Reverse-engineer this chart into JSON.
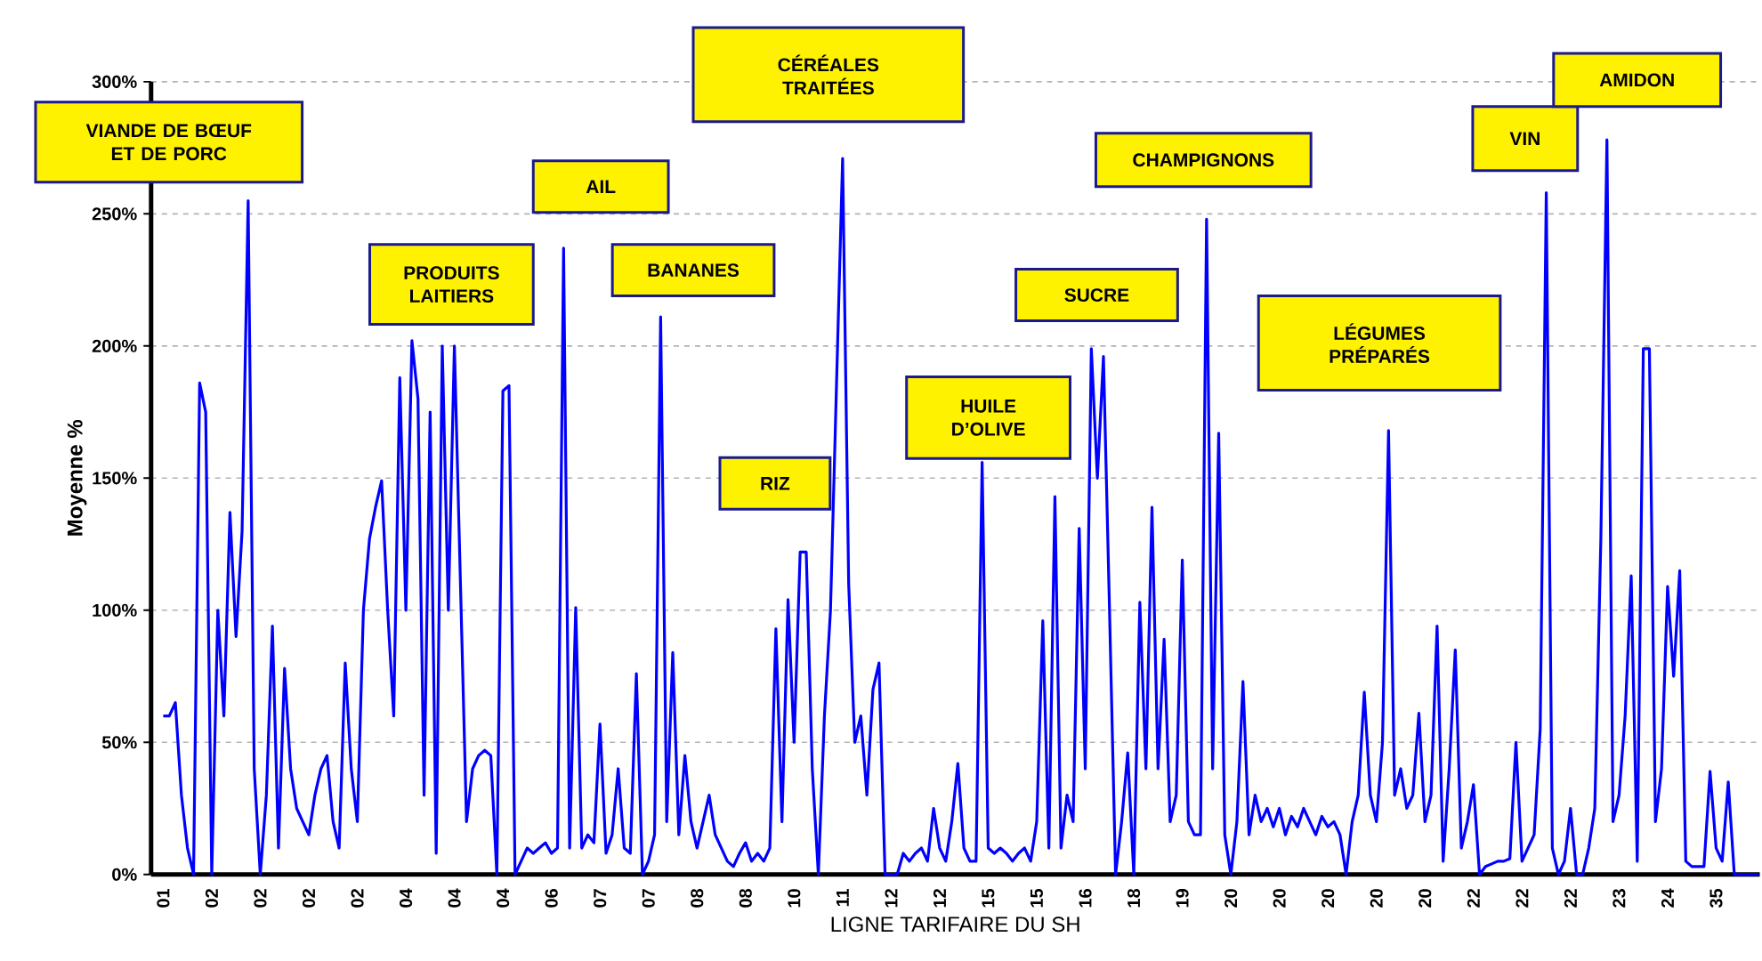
{
  "chart_data": {
    "type": "line",
    "xlabel": "LIGNE TARIFAIRE DU SH",
    "ylabel": "Moyenne %",
    "categories": [
      "01",
      null,
      null,
      null,
      null,
      null,
      null,
      null,
      "02",
      null,
      null,
      null,
      null,
      null,
      null,
      null,
      "02",
      null,
      null,
      null,
      null,
      null,
      null,
      null,
      "02",
      null,
      null,
      null,
      null,
      null,
      null,
      null,
      "02",
      null,
      null,
      null,
      null,
      null,
      null,
      null,
      "04",
      null,
      null,
      null,
      null,
      null,
      null,
      null,
      "04",
      null,
      null,
      null,
      null,
      null,
      null,
      null,
      "04",
      null,
      null,
      null,
      null,
      null,
      null,
      null,
      "06",
      null,
      null,
      null,
      null,
      null,
      null,
      null,
      "07",
      null,
      null,
      null,
      null,
      null,
      null,
      null,
      "07",
      null,
      null,
      null,
      null,
      null,
      null,
      null,
      "08",
      null,
      null,
      null,
      null,
      null,
      null,
      null,
      "08",
      null,
      null,
      null,
      null,
      null,
      null,
      null,
      "10",
      null,
      null,
      null,
      null,
      null,
      null,
      null,
      "11",
      null,
      null,
      null,
      null,
      null,
      null,
      null,
      "12",
      null,
      null,
      null,
      null,
      null,
      null,
      null,
      "12",
      null,
      null,
      null,
      null,
      null,
      null,
      null,
      "15",
      null,
      null,
      null,
      null,
      null,
      null,
      null,
      "15",
      null,
      null,
      null,
      null,
      null,
      null,
      null,
      "16",
      null,
      null,
      null,
      null,
      null,
      null,
      null,
      "18",
      null,
      null,
      null,
      null,
      null,
      null,
      null,
      "19",
      null,
      null,
      null,
      null,
      null,
      null,
      null,
      "20",
      null,
      null,
      null,
      null,
      null,
      null,
      null,
      "20",
      null,
      null,
      null,
      null,
      null,
      null,
      null,
      "20",
      null,
      null,
      null,
      null,
      null,
      null,
      null,
      "20",
      null,
      null,
      null,
      null,
      null,
      null,
      null,
      "20",
      null,
      null,
      null,
      null,
      null,
      null,
      null,
      "22",
      null,
      null,
      null,
      null,
      null,
      null,
      null,
      "22",
      null,
      null,
      null,
      null,
      null,
      null,
      null,
      "22",
      null,
      null,
      null,
      null,
      null,
      null,
      null,
      "23",
      null,
      null,
      null,
      null,
      null,
      null,
      null,
      "24",
      null,
      null,
      null,
      null,
      null,
      null,
      null,
      "35",
      null,
      null,
      null,
      null,
      null,
      null,
      null
    ],
    "ylim": [
      0,
      300
    ],
    "yticks": [
      {
        "value": 0,
        "label": "0%"
      },
      {
        "value": 50,
        "label": "50%"
      },
      {
        "value": 100,
        "label": "100%"
      },
      {
        "value": 150,
        "label": "150%"
      },
      {
        "value": 200,
        "label": "200%"
      },
      {
        "value": 250,
        "label": "250%"
      },
      {
        "value": 300,
        "label": "300%"
      }
    ],
    "grid": "y",
    "marker": "none",
    "line_style": "solid",
    "annotations": [
      "VIANDE DE BŒUF\nET DE PORC",
      "PRODUITS\nLAITIERS",
      "AIL",
      "BANANES",
      "CÉRÉALES\nTRAITÉES",
      "RIZ",
      "HUILE\nD’OLIVE",
      "SUCRE",
      "CHAMPIGNONS",
      "LÉGUMES\nPRÉPARÉS",
      "VIN",
      "AMIDON"
    ],
    "series": [
      {
        "color": "#0000ff",
        "values": [
          60,
          60,
          65,
          30,
          10,
          0,
          186,
          175,
          0,
          100,
          60,
          137,
          90,
          130,
          255,
          40,
          0,
          30,
          94,
          10,
          78,
          40,
          25,
          20,
          15,
          30,
          40,
          45,
          20,
          10,
          80,
          40,
          20,
          100,
          127,
          139,
          149,
          100,
          60,
          188,
          100,
          202,
          180,
          30,
          175,
          8,
          200,
          100,
          200,
          110,
          20,
          40,
          45,
          47,
          45,
          0,
          183,
          185,
          0,
          5,
          10,
          8,
          10,
          12,
          8,
          10,
          237,
          10,
          101,
          10,
          15,
          12,
          57,
          8,
          15,
          40,
          10,
          8,
          76,
          0,
          5,
          15,
          211,
          20,
          84,
          15,
          45,
          20,
          10,
          20,
          30,
          15,
          10,
          5,
          3,
          8,
          12,
          5,
          8,
          5,
          10,
          93,
          20,
          104,
          50,
          122,
          122,
          40,
          0,
          60,
          100,
          186,
          271,
          110,
          50,
          60,
          30,
          70,
          80,
          0,
          0,
          0,
          8,
          5,
          8,
          10,
          5,
          25,
          10,
          5,
          20,
          42,
          10,
          5,
          5,
          156,
          10,
          8,
          10,
          8,
          5,
          8,
          10,
          5,
          20,
          96,
          10,
          143,
          10,
          30,
          20,
          131,
          40,
          199,
          150,
          196,
          100,
          0,
          20,
          46,
          0,
          103,
          40,
          139,
          40,
          89,
          20,
          30,
          119,
          20,
          15,
          15,
          248,
          40,
          167,
          15,
          0,
          20,
          73,
          15,
          30,
          20,
          25,
          18,
          25,
          15,
          22,
          18,
          25,
          20,
          15,
          22,
          18,
          20,
          15,
          0,
          20,
          30,
          69,
          30,
          20,
          50,
          168,
          30,
          40,
          25,
          30,
          61,
          20,
          30,
          94,
          5,
          40,
          85,
          10,
          20,
          34,
          0,
          3,
          4,
          5,
          5,
          6,
          50,
          5,
          10,
          15,
          55,
          258,
          10,
          0,
          5,
          25,
          0,
          0,
          10,
          25,
          127,
          278,
          20,
          30,
          60,
          113,
          5,
          199,
          199,
          20,
          40,
          109,
          75,
          115,
          5,
          3,
          3,
          3,
          39,
          10,
          5,
          35,
          0,
          0,
          0,
          0,
          0
        ]
      }
    ]
  }
}
